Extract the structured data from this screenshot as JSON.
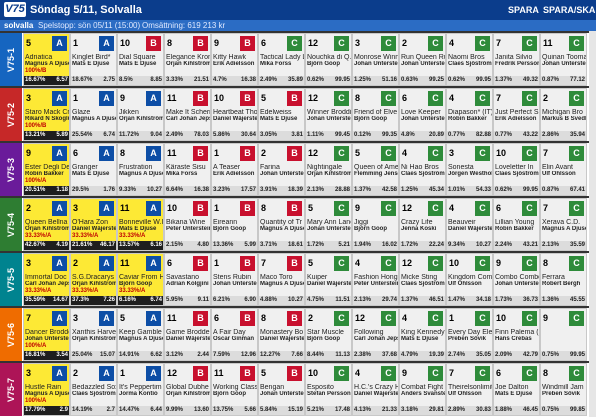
{
  "header": {
    "logo": "V75",
    "title": "Söndag 5/11, Solvalla",
    "spara": "SPARA",
    "spara_ska": "SPARA/SKA"
  },
  "subbar": {
    "track": "solvalla",
    "stopp": "Spelstopp: sön 05/11 (15:00)",
    "omsattning": "Omsättning: 619 213 kr"
  },
  "colors": {
    "A": "#0d4ea6",
    "B": "#c8102e",
    "C": "#2e8b3a"
  },
  "races": [
    {
      "label": "V75-1",
      "color": "#1565c0",
      "horses": [
        {
          "n": "5",
          "b": "A",
          "name": "Adriatica",
          "driver": "Magnus A Djuse",
          "p1": "16.67%",
          "p2": "6.57",
          "sel": true,
          "pr": "100%/B"
        },
        {
          "n": "1",
          "b": "A",
          "name": "Kinglet Bird*",
          "driver": "Mats E Djuse",
          "p1": "18.67%",
          "p2": "2.75"
        },
        {
          "n": "10",
          "b": "B",
          "name": "Dial Square",
          "driver": "Mats E Djuse",
          "p1": "8.5%",
          "p2": "8.85"
        },
        {
          "n": "8",
          "b": "B",
          "name": "Elegance Kron",
          "driver": "Örjan Kihlström",
          "p1": "3.33%",
          "p2": "21.51"
        },
        {
          "n": "9",
          "b": "B",
          "name": "Kitty Hawk",
          "driver": "Erik Adielsson",
          "p1": "4.7%",
          "p2": "16.38"
        },
        {
          "n": "6",
          "b": "C",
          "name": "Tactical Lady L",
          "driver": "Mika Forss",
          "p1": "2.49%",
          "p2": "35.89"
        },
        {
          "n": "12",
          "b": "C",
          "name": "Nouchka di Q.",
          "driver": "Björn Goop",
          "p1": "0.62%",
          "p2": "99.95"
        },
        {
          "n": "3",
          "b": "C",
          "name": "Monrose Winn",
          "driver": "Johan Untersteiner",
          "p1": "1.25%",
          "p2": "51.16"
        },
        {
          "n": "2",
          "b": "C",
          "name": "Run Queen Ru",
          "driver": "Johan Untersteiner",
          "p1": "0.63%",
          "p2": "99.25"
        },
        {
          "n": "4",
          "b": "C",
          "name": "Naomi Bros",
          "driver": "Claes Sjöström",
          "p1": "0.62%",
          "p2": "99.95"
        },
        {
          "n": "7",
          "b": "C",
          "name": "Janita Silvio",
          "driver": "Fredrik Persson",
          "p1": "1.37%",
          "p2": "49.32"
        },
        {
          "n": "11",
          "b": "C",
          "name": "Quinan Tooma",
          "driver": "Johan Untersteiner",
          "p1": "0.87%",
          "p2": "77.12"
        }
      ]
    },
    {
      "label": "V75-2",
      "color": "#c62828",
      "horses": [
        {
          "n": "3",
          "b": "A",
          "name": "Staro Mack Cr",
          "driver": "Rikard N Skoglund",
          "p1": "13.21%",
          "p2": "5.89",
          "sel": true,
          "pr": "100%/B"
        },
        {
          "n": "1",
          "b": "A",
          "name": "Glaze",
          "driver": "Magnus A Djuse",
          "p1": "25.54%",
          "p2": "6.74"
        },
        {
          "n": "9",
          "b": "A",
          "name": "Jikken",
          "driver": "Örjan Kihlström",
          "p1": "11.72%",
          "p2": "9.04"
        },
        {
          "n": "11",
          "b": "B",
          "name": "Make It Scherr",
          "driver": "Carl Johan Jepson",
          "p1": "2.49%",
          "p2": "78.03"
        },
        {
          "n": "10",
          "b": "B",
          "name": "Heartbeat Tho",
          "driver": "Daniel Wäjersten",
          "p1": "5.86%",
          "p2": "30.64"
        },
        {
          "n": "5",
          "b": "B",
          "name": "Edelweiss",
          "driver": "Mats E Djuse",
          "p1": "3.05%",
          "p2": "3.81"
        },
        {
          "n": "12",
          "b": "C",
          "name": "Winner Broddi",
          "driver": "Johan Untersteiner",
          "p1": "1.11%",
          "p2": "99.45"
        },
        {
          "n": "8",
          "b": "C",
          "name": "Friend of Elve",
          "driver": "Björn Goop",
          "p1": "0.12%",
          "p2": "99.35"
        },
        {
          "n": "6",
          "b": "C",
          "name": "Love Keeper",
          "driver": "Johan Untersteiner",
          "p1": "4.8%",
          "p2": "20.89"
        },
        {
          "n": "4",
          "b": "C",
          "name": "Diapason* (IT)",
          "driver": "Robin Bakker",
          "p1": "0.77%",
          "p2": "82.88"
        },
        {
          "n": "7",
          "b": "C",
          "name": "Just Perfect Si",
          "driver": "Erik Adielsson",
          "p1": "0.77%",
          "p2": "43.22"
        },
        {
          "n": "2",
          "b": "C",
          "name": "Michigan Bro",
          "driver": "Markus B Svedbe",
          "p1": "2.86%",
          "p2": "35.94"
        }
      ]
    },
    {
      "label": "V75-3",
      "color": "#6a1b9a",
      "horses": [
        {
          "n": "9",
          "b": "A",
          "name": "Ester Degli De",
          "driver": "Robin Bakker",
          "p1": "20.51%",
          "p2": "1.18",
          "sel": true,
          "pr": "100%/A"
        },
        {
          "n": "6",
          "b": "A",
          "name": "Granger",
          "driver": "Mats E Djuse",
          "p1": "29.5%",
          "p2": "1.76"
        },
        {
          "n": "8",
          "b": "A",
          "name": "Frustration",
          "driver": "Magnus A Djuse",
          "p1": "9.33%",
          "p2": "10.27"
        },
        {
          "n": "11",
          "b": "B",
          "name": "Käraste Sisu",
          "driver": "Mika Forss",
          "p1": "6.64%",
          "p2": "16.38"
        },
        {
          "n": "1",
          "b": "B",
          "name": "A Teaser",
          "driver": "Erik Adielsson",
          "p1": "3.23%",
          "p2": "17.57"
        },
        {
          "n": "2",
          "b": "B",
          "name": "Farina",
          "driver": "Johan Untersteiner",
          "p1": "3.91%",
          "p2": "18.39"
        },
        {
          "n": "12",
          "b": "C",
          "name": "Nightingale",
          "driver": "Örjan Kihlström",
          "p1": "2.13%",
          "p2": "28.88"
        },
        {
          "n": "5",
          "b": "C",
          "name": "Queen of Ame",
          "driver": "Flemming Jensen",
          "p1": "1.37%",
          "p2": "42.58"
        },
        {
          "n": "4",
          "b": "C",
          "name": "Ni Hao Bros",
          "driver": "Claes Sjöström",
          "p1": "1.25%",
          "p2": "45.34"
        },
        {
          "n": "3",
          "b": "C",
          "name": "Sonesta",
          "driver": "Jörgen Westholm",
          "p1": "1.01%",
          "p2": "54.33"
        },
        {
          "n": "10",
          "b": "C",
          "name": "Loveletter In",
          "driver": "Claes Sjöström",
          "p1": "0.62%",
          "p2": "99.95"
        },
        {
          "n": "7",
          "b": "C",
          "name": "Elin Avant",
          "driver": "Ulf Ohlsson",
          "p1": "0.87%",
          "p2": "67.41"
        }
      ]
    },
    {
      "label": "V75-4",
      "color": "#2e7d32",
      "horses": [
        {
          "n": "2",
          "b": "A",
          "name": "Queen Bellna",
          "driver": "Örjan Kihlström",
          "p1": "42.67%",
          "p2": "4.19",
          "sel": true,
          "pr": "33.33%/A"
        },
        {
          "n": "3",
          "b": "A",
          "name": "O'Hara Zon",
          "driver": "Daniel Wäjersten",
          "p1": "21.61%",
          "p2": "46.17",
          "sel": true,
          "pr": "33.33%/A"
        },
        {
          "n": "11",
          "b": "A",
          "name": "Bonneville W.I",
          "driver": "Mats E Djuse",
          "p1": "13.57%",
          "p2": "6.16",
          "sel": true,
          "pr": "33.33%/A"
        },
        {
          "n": "10",
          "b": "B",
          "name": "Bikana Wine",
          "driver": "Peter Untersteiner",
          "p1": "2.15%",
          "p2": "4.80"
        },
        {
          "n": "1",
          "b": "B",
          "name": "Eireann",
          "driver": "Björn Goop",
          "p1": "13.36%",
          "p2": "5.99"
        },
        {
          "n": "8",
          "b": "B",
          "name": "Quantity of Tr",
          "driver": "Magnus A Djuse",
          "p1": "3.71%",
          "p2": "18.61"
        },
        {
          "n": "5",
          "b": "C",
          "name": "Mary Ann Lane",
          "driver": "Johan Untersteiner",
          "p1": "1.72%",
          "p2": "5.21"
        },
        {
          "n": "9",
          "b": "C",
          "name": "Jiggi",
          "driver": "Björn Goop",
          "p1": "1.94%",
          "p2": "16.02"
        },
        {
          "n": "12",
          "b": "C",
          "name": "Crazy Life",
          "driver": "Jenna Koski",
          "p1": "1.72%",
          "p2": "22.24"
        },
        {
          "n": "4",
          "b": "C",
          "name": "Beauveir",
          "driver": "Daniel Wäjersten",
          "p1": "9.34%",
          "p2": "10.27"
        },
        {
          "n": "6",
          "b": "C",
          "name": "Lillian Young",
          "driver": "Robin Bakker",
          "p1": "2.24%",
          "p2": "43.21"
        },
        {
          "n": "7",
          "b": "C",
          "name": "Xerava C.D.",
          "driver": "Magnus A Djuse",
          "p1": "2.13%",
          "p2": "35.59"
        }
      ]
    },
    {
      "label": "V75-5",
      "color": "#00838f",
      "horses": [
        {
          "n": "3",
          "b": "A",
          "name": "Immortal Doc",
          "driver": "Carl Johan Jepson",
          "p1": "35.59%",
          "p2": "14.67",
          "sel": true,
          "pr": "33.33%/A"
        },
        {
          "n": "2",
          "b": "A",
          "name": "S.G.Dracarys",
          "driver": "Örjan Kihlström",
          "p1": "37.3%",
          "p2": "7.26",
          "sel": true,
          "pr": "33.33%/A"
        },
        {
          "n": "11",
          "b": "A",
          "name": "Caviar From H",
          "driver": "Björn Goop",
          "p1": "6.16%",
          "p2": "6.74",
          "sel": true,
          "pr": "33.33%/A"
        },
        {
          "n": "6",
          "b": "B",
          "name": "Savastano",
          "driver": "Adrian Kolgjini",
          "p1": "5.95%",
          "p2": "9.11"
        },
        {
          "n": "1",
          "b": "B",
          "name": "Stens Rubin",
          "driver": "Johan Untersteiner",
          "p1": "6.21%",
          "p2": "6.90"
        },
        {
          "n": "7",
          "b": "B",
          "name": "Maco Toro",
          "driver": "Magnus A Djuse",
          "p1": "4.88%",
          "p2": "10.27"
        },
        {
          "n": "5",
          "b": "C",
          "name": "Kuiper",
          "driver": "Daniel Wäjersten",
          "p1": "4.75%",
          "p2": "11.51"
        },
        {
          "n": "4",
          "b": "C",
          "name": "Fashion Hongk",
          "driver": "Peter Untersteiner",
          "p1": "2.13%",
          "p2": "29.74"
        },
        {
          "n": "12",
          "b": "C",
          "name": "Micke Sting",
          "driver": "Claes Sjöström",
          "p1": "1.37%",
          "p2": "46.51"
        },
        {
          "n": "10",
          "b": "C",
          "name": "Kingdom Com",
          "driver": "Ulf Ohlsson",
          "p1": "1.47%",
          "p2": "34.18"
        },
        {
          "n": "9",
          "b": "C",
          "name": "Combo Combo",
          "driver": "Johan Untersteiner",
          "p1": "1.73%",
          "p2": "36.73"
        },
        {
          "n": "8",
          "b": "C",
          "name": "Ferrara",
          "driver": "Robert Bergh",
          "p1": "1.36%",
          "p2": "45.55"
        }
      ]
    },
    {
      "label": "V75-6",
      "color": "#ef6c00",
      "horses": [
        {
          "n": "7",
          "b": "A",
          "name": "Dancer Broddo",
          "driver": "Johan Untersteiner",
          "p1": "16.81%",
          "p2": "3.54",
          "sel": true,
          "pr": "100%/A"
        },
        {
          "n": "3",
          "b": "A",
          "name": "Xanthis Harver",
          "driver": "Örjan Kihlström",
          "p1": "25.04%",
          "p2": "15.07"
        },
        {
          "n": "5",
          "b": "A",
          "name": "Keep Gamble",
          "driver": "Magnus A Djuse",
          "p1": "14.91%",
          "p2": "6.62"
        },
        {
          "n": "11",
          "b": "B",
          "name": "Game Brodde",
          "driver": "Daniel Wäjersten",
          "p1": "3.12%",
          "p2": "2.44"
        },
        {
          "n": "6",
          "b": "B",
          "name": "A Fair Day",
          "driver": "Oscar Ginman",
          "p1": "7.59%",
          "p2": "12.96"
        },
        {
          "n": "8",
          "b": "B",
          "name": "Monastery Bo",
          "driver": "Daniel Wäjersten",
          "p1": "12.27%",
          "p2": "7.66"
        },
        {
          "n": "2",
          "b": "C",
          "name": "Star Muscle",
          "driver": "Björn Goop",
          "p1": "8.44%",
          "p2": "11.13"
        },
        {
          "n": "12",
          "b": "C",
          "name": "Following",
          "driver": "Carl Johan Jepson",
          "p1": "2.38%",
          "p2": "37.68"
        },
        {
          "n": "4",
          "b": "C",
          "name": "King Kennedy",
          "driver": "Mats E Djuse",
          "p1": "4.79%",
          "p2": "19.39"
        },
        {
          "n": "1",
          "b": "C",
          "name": "Every Day Ele",
          "driver": "Preben Sövik",
          "p1": "2.74%",
          "p2": "35.05"
        },
        {
          "n": "10",
          "b": "C",
          "name": "Finn Palema (I",
          "driver": "Hans Crebas",
          "p1": "2.09%",
          "p2": "42.79"
        },
        {
          "n": "9",
          "b": "C",
          "name": "",
          "driver": "",
          "p1": "0.75%",
          "p2": "99.95"
        }
      ]
    },
    {
      "label": "V75-7",
      "color": "#ad1457",
      "horses": [
        {
          "n": "3",
          "b": "A",
          "name": "Hustle Rain",
          "driver": "Magnus A Djuse",
          "p1": "17.79%",
          "p2": "2.9",
          "sel": true,
          "pr": "100%/A"
        },
        {
          "n": "2",
          "b": "A",
          "name": "Bedazzled Sox",
          "driver": "Claes Sjöström",
          "p1": "14.19%",
          "p2": "2.7"
        },
        {
          "n": "1",
          "b": "A",
          "name": "It's Peppertim",
          "driver": "Jorma Kontio",
          "p1": "14.47%",
          "p2": "6.44"
        },
        {
          "n": "12",
          "b": "B",
          "name": "Global Dubhe",
          "driver": "Örjan Kihlström",
          "p1": "9.99%",
          "p2": "13.60"
        },
        {
          "n": "11",
          "b": "B",
          "name": "Working Class",
          "driver": "Björn Goop",
          "p1": "13.75%",
          "p2": "5.66"
        },
        {
          "n": "5",
          "b": "B",
          "name": "Bengan",
          "driver": "Johan Untersteiner",
          "p1": "5.84%",
          "p2": "15.19"
        },
        {
          "n": "10",
          "b": "C",
          "name": "Esposito",
          "driver": "Stefan Persson",
          "p1": "5.21%",
          "p2": "17.48"
        },
        {
          "n": "4",
          "b": "C",
          "name": "H.C.'s Crazy H",
          "driver": "Daniel Wäjersten",
          "p1": "4.13%",
          "p2": "21.33"
        },
        {
          "n": "9",
          "b": "C",
          "name": "Combat Fight",
          "driver": "Anders Svanstedt",
          "p1": "3.18%",
          "p2": "29.81"
        },
        {
          "n": "7",
          "b": "C",
          "name": "Theirelsonlimit",
          "driver": "Ulf Ohlsson",
          "p1": "2.89%",
          "p2": "30.83"
        },
        {
          "n": "6",
          "b": "C",
          "name": "Joe Dalton",
          "driver": "Mats E Djuse",
          "p1": "1.88%",
          "p2": "46.45"
        },
        {
          "n": "8",
          "b": "C",
          "name": "Windmill Jam",
          "driver": "Preben Sövik",
          "p1": "0.75%",
          "p2": "99.85"
        }
      ]
    }
  ]
}
